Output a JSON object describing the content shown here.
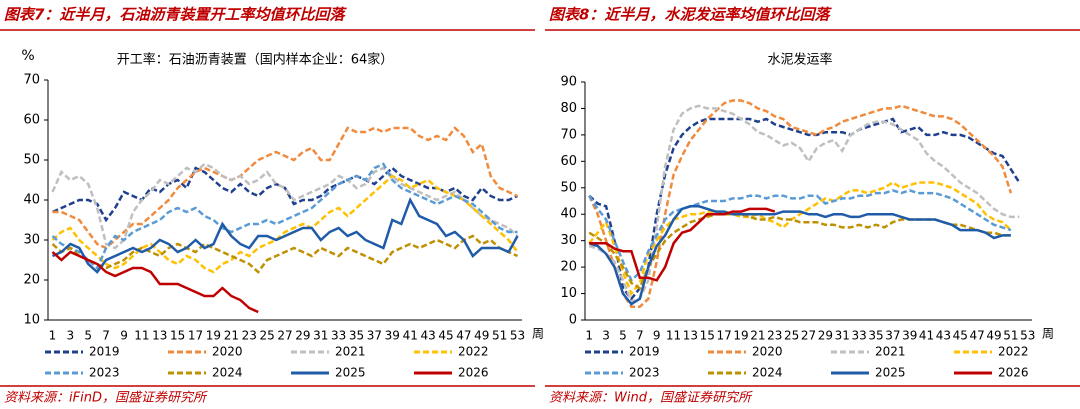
{
  "chart_data": [
    {
      "type": "line",
      "title": "图表7：近半月，石油沥青装置开工率均值环比回落",
      "subtitle": "开工率：石油沥青装置（国内样本企业：64家）",
      "source": "资料来源：iFinD，国盛证券研究所",
      "y_label": "%",
      "x_label": "周",
      "categories": [
        1,
        null,
        3,
        null,
        5,
        null,
        7,
        null,
        9,
        null,
        11,
        null,
        13,
        null,
        15,
        null,
        17,
        null,
        19,
        null,
        21,
        null,
        23,
        null,
        25,
        null,
        27,
        null,
        29,
        null,
        31,
        null,
        33,
        null,
        35,
        null,
        37,
        null,
        39,
        null,
        41,
        null,
        43,
        null,
        45,
        null,
        47,
        null,
        49,
        null,
        51,
        null,
        53
      ],
      "ylim": [
        10,
        70
      ],
      "yticks": [
        10,
        20,
        30,
        40,
        50,
        60,
        70
      ],
      "series": [
        {
          "name": "2019",
          "color": "#1f3f8f",
          "dashed": true,
          "values": [
            37,
            38,
            39,
            40,
            40,
            39,
            35,
            38,
            42,
            41,
            40,
            43,
            42,
            44,
            45,
            43,
            48,
            47,
            45,
            43,
            42,
            44,
            42,
            41,
            43,
            44,
            43,
            39,
            40,
            40,
            41,
            43,
            44,
            45,
            46,
            45,
            44,
            46,
            48,
            46,
            45,
            44,
            43,
            43,
            42,
            43,
            41,
            40,
            43,
            41,
            40,
            40,
            41
          ]
        },
        {
          "name": "2020",
          "color": "#f08a3c",
          "dashed": true,
          "values": [
            37,
            37,
            36,
            35,
            32,
            29,
            28,
            30,
            32,
            34,
            34,
            36,
            38,
            40,
            43,
            45,
            47,
            48,
            47,
            46,
            45,
            46,
            48,
            50,
            51,
            52,
            51,
            50,
            52,
            53,
            50,
            50,
            54,
            58,
            57,
            57,
            58,
            57,
            58,
            58,
            58,
            56,
            55,
            56,
            55,
            58,
            56,
            52,
            54,
            46,
            43,
            42,
            41
          ]
        },
        {
          "name": "2021",
          "color": "#bfbfbf",
          "dashed": true,
          "values": [
            42,
            47,
            45,
            46,
            44,
            38,
            29,
            28,
            30,
            37,
            40,
            42,
            45,
            44,
            46,
            48,
            47,
            49,
            48,
            46,
            45,
            46,
            44,
            45,
            47,
            44,
            43,
            40,
            41,
            42,
            43,
            44,
            46,
            45,
            43,
            44,
            47,
            48,
            46,
            44,
            43,
            42,
            41,
            40,
            41,
            42,
            40,
            38,
            36,
            35,
            34,
            33,
            31
          ]
        },
        {
          "name": "2022",
          "color": "#ffc000",
          "dashed": true,
          "values": [
            30,
            32,
            33,
            30,
            28,
            26,
            24,
            23,
            24,
            26,
            28,
            29,
            27,
            25,
            24,
            26,
            25,
            23,
            22,
            24,
            25,
            27,
            26,
            28,
            29,
            30,
            32,
            33,
            34,
            33,
            35,
            37,
            38,
            36,
            38,
            40,
            42,
            44,
            46,
            45,
            43,
            44,
            45,
            43,
            42,
            41,
            40,
            38,
            36,
            34,
            32,
            30,
            27
          ]
        },
        {
          "name": "2023",
          "color": "#5b9bd5",
          "dashed": true,
          "values": [
            31,
            29,
            28,
            27,
            25,
            23,
            28,
            31,
            30,
            32,
            33,
            34,
            35,
            37,
            38,
            37,
            38,
            36,
            35,
            33,
            32,
            33,
            34,
            34,
            35,
            34,
            35,
            36,
            37,
            38,
            40,
            42,
            44,
            45,
            46,
            45,
            48,
            49,
            45,
            43,
            42,
            41,
            40,
            39,
            40,
            41,
            40,
            39,
            37,
            35,
            33,
            32,
            32
          ]
        },
        {
          "name": "2024",
          "color": "#bf9000",
          "dashed": true,
          "values": [
            29,
            27,
            28,
            26,
            25,
            24,
            23,
            24,
            25,
            27,
            28,
            27,
            26,
            28,
            29,
            28,
            27,
            29,
            28,
            27,
            26,
            25,
            24,
            22,
            25,
            26,
            27,
            28,
            27,
            26,
            28,
            27,
            26,
            28,
            27,
            26,
            25,
            24,
            27,
            28,
            29,
            28,
            29,
            30,
            29,
            28,
            30,
            31,
            29,
            30,
            28,
            27,
            26
          ]
        },
        {
          "name": "2025",
          "color": "#1f5ba8",
          "dashed": false,
          "values": [
            26,
            27,
            29,
            28,
            24,
            22,
            25,
            26,
            27,
            28,
            27,
            28,
            30,
            29,
            27,
            28,
            30,
            28,
            29,
            34,
            31,
            29,
            28,
            31,
            31,
            30,
            31,
            32,
            33,
            33,
            30,
            32,
            33,
            31,
            32,
            30,
            29,
            28,
            35,
            34,
            40,
            36,
            35,
            34,
            31,
            32,
            30,
            26,
            28,
            28,
            28,
            27,
            31
          ]
        },
        {
          "name": "2026",
          "color": "#c00000",
          "dashed": false,
          "values": [
            27,
            25,
            27,
            26,
            25,
            24,
            22,
            21,
            22,
            23,
            23,
            22,
            19,
            19,
            19,
            18,
            17,
            16,
            16,
            18,
            16,
            15,
            13,
            12,
            null,
            null,
            null,
            null,
            null,
            null,
            null,
            null,
            null,
            null,
            null,
            null,
            null,
            null,
            null,
            null,
            null,
            null,
            null,
            null,
            null,
            null,
            null,
            null,
            null,
            null,
            null,
            null,
            null
          ]
        }
      ]
    },
    {
      "type": "line",
      "title": "图表8：近半月，水泥发运率均值环比回落",
      "subtitle": "水泥发运率",
      "source": "资料来源：Wind，国盛证券研究所",
      "x_label": "周",
      "categories": [
        1,
        null,
        3,
        null,
        5,
        null,
        7,
        null,
        9,
        null,
        11,
        null,
        13,
        null,
        15,
        null,
        17,
        null,
        19,
        null,
        21,
        null,
        23,
        null,
        25,
        null,
        27,
        null,
        29,
        null,
        31,
        null,
        33,
        null,
        35,
        null,
        37,
        null,
        39,
        null,
        41,
        null,
        43,
        null,
        45,
        null,
        47,
        null,
        49,
        null,
        51,
        null,
        53
      ],
      "ylim": [
        0,
        90
      ],
      "yticks": [
        0,
        10,
        20,
        30,
        40,
        50,
        60,
        70,
        80,
        90
      ],
      "series": [
        {
          "name": "2019",
          "color": "#1f3f8f",
          "dashed": true,
          "values": [
            47,
            44,
            43,
            30,
            12,
            8,
            12,
            20,
            40,
            55,
            65,
            70,
            73,
            75,
            76,
            76,
            76,
            76,
            76,
            76,
            75,
            76,
            74,
            73,
            72,
            71,
            70,
            70,
            71,
            71,
            71,
            70,
            72,
            73,
            74,
            75,
            76,
            71,
            72,
            73,
            70,
            70,
            71,
            70,
            70,
            69,
            67,
            65,
            63,
            62,
            57,
            52,
            null
          ]
        },
        {
          "name": "2020",
          "color": "#f08a3c",
          "dashed": true,
          "values": [
            47,
            40,
            30,
            20,
            10,
            5,
            5,
            8,
            22,
            40,
            55,
            62,
            68,
            72,
            76,
            79,
            82,
            83,
            83,
            82,
            80,
            79,
            77,
            76,
            73,
            72,
            71,
            70,
            72,
            73,
            75,
            76,
            77,
            78,
            79,
            80,
            80,
            81,
            80,
            79,
            78,
            77,
            77,
            76,
            74,
            71,
            68,
            65,
            62,
            58,
            48,
            null,
            null
          ]
        },
        {
          "name": "2021",
          "color": "#bfbfbf",
          "dashed": true,
          "values": [
            28,
            27,
            25,
            22,
            15,
            7,
            8,
            15,
            35,
            58,
            72,
            78,
            80,
            81,
            80,
            80,
            79,
            78,
            76,
            74,
            71,
            70,
            68,
            66,
            67,
            65,
            60,
            65,
            67,
            68,
            64,
            70,
            72,
            74,
            75,
            75,
            74,
            72,
            70,
            68,
            63,
            60,
            58,
            55,
            52,
            50,
            48,
            45,
            42,
            40,
            39,
            39,
            null
          ]
        },
        {
          "name": "2022",
          "color": "#ffc000",
          "dashed": true,
          "values": [
            29,
            33,
            37,
            28,
            18,
            10,
            14,
            25,
            30,
            35,
            38,
            39,
            40,
            40,
            41,
            41,
            40,
            40,
            39,
            39,
            40,
            38,
            37,
            35,
            38,
            40,
            42,
            44,
            46,
            45,
            47,
            49,
            49,
            48,
            49,
            50,
            52,
            50,
            51,
            52,
            52,
            52,
            51,
            50,
            48,
            46,
            44,
            40,
            38,
            37,
            34,
            null,
            null
          ]
        },
        {
          "name": "2023",
          "color": "#5b9bd5",
          "dashed": true,
          "values": [
            47,
            42,
            38,
            30,
            22,
            15,
            18,
            26,
            32,
            38,
            41,
            42,
            43,
            44,
            45,
            45,
            45,
            46,
            46,
            47,
            47,
            46,
            47,
            47,
            46,
            46,
            47,
            47,
            44,
            45,
            46,
            46,
            47,
            47,
            48,
            48,
            49,
            48,
            49,
            48,
            48,
            48,
            47,
            46,
            44,
            42,
            40,
            38,
            36,
            35,
            34,
            null,
            null
          ]
        },
        {
          "name": "2024",
          "color": "#bf9000",
          "dashed": true,
          "values": [
            33,
            31,
            29,
            25,
            20,
            14,
            12,
            20,
            25,
            30,
            33,
            35,
            37,
            38,
            39,
            40,
            40,
            40,
            40,
            39,
            38,
            38,
            39,
            38,
            38,
            37,
            37,
            37,
            36,
            36,
            35,
            35,
            36,
            35,
            36,
            35,
            37,
            38,
            38,
            38,
            38,
            38,
            37,
            36,
            36,
            35,
            34,
            33,
            33,
            32,
            32,
            null,
            null
          ]
        },
        {
          "name": "2025",
          "color": "#1f5ba8",
          "dashed": false,
          "values": [
            29,
            28,
            25,
            20,
            10,
            6,
            8,
            20,
            28,
            32,
            38,
            42,
            43,
            43,
            42,
            41,
            41,
            40,
            40,
            40,
            40,
            40,
            40,
            41,
            41,
            41,
            40,
            40,
            39,
            40,
            40,
            39,
            39,
            40,
            40,
            40,
            40,
            39,
            38,
            38,
            38,
            38,
            37,
            36,
            34,
            34,
            34,
            33,
            31,
            32,
            32,
            null,
            null
          ]
        },
        {
          "name": "2026",
          "color": "#c00000",
          "dashed": false,
          "values": [
            29,
            29,
            29,
            27,
            26,
            26,
            16,
            16,
            15,
            20,
            29,
            33,
            34,
            37,
            40,
            40,
            40,
            41,
            41,
            42,
            42,
            42,
            41,
            null,
            null,
            null,
            null,
            null,
            null,
            null,
            null,
            null,
            null,
            null,
            null,
            null,
            null,
            null,
            null,
            null,
            null,
            null,
            null,
            null,
            null,
            null,
            null,
            null,
            null,
            null,
            null,
            null,
            null
          ]
        }
      ]
    }
  ]
}
